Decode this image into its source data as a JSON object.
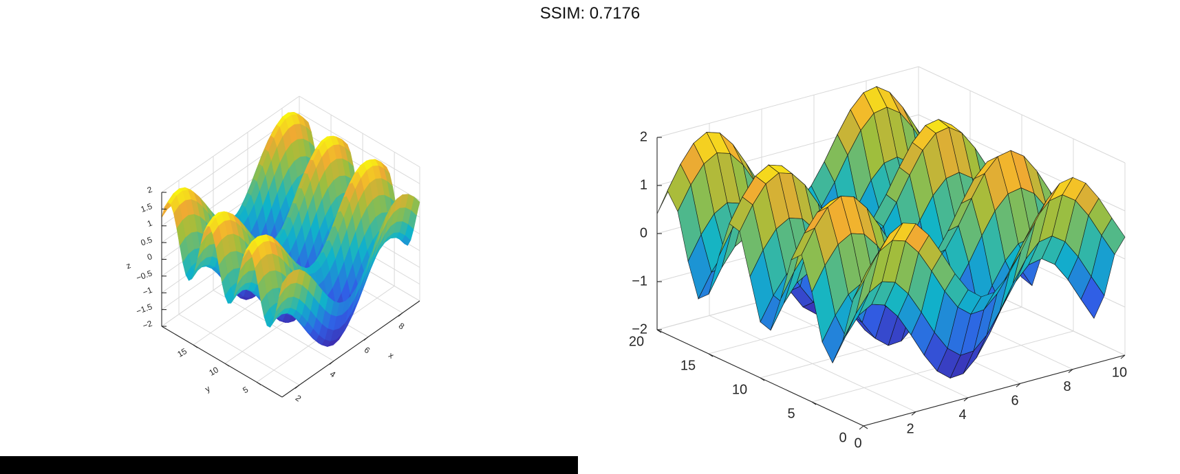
{
  "header": {
    "title": "SSIM: 0.7176"
  },
  "colors": {
    "low": "#3e26a8",
    "mid": "#10b4c9",
    "high": "#f9fb0e",
    "grid": "#d8d8d8",
    "axis": "#262626",
    "edge": "#111111"
  },
  "chart_data": [
    {
      "type": "surface",
      "title": "",
      "xlabel": "x",
      "ylabel": "y",
      "zlabel": "z",
      "xlim": [
        1,
        9
      ],
      "ylim": [
        1,
        20
      ],
      "zlim": [
        -2,
        2
      ],
      "x_ticks": [
        "2",
        "4",
        "6",
        "8"
      ],
      "y_ticks": [
        "5",
        "10",
        "15"
      ],
      "z_ticks": [
        "-2",
        "-1.5",
        "-1",
        "-0.5",
        "0",
        "0.5",
        "1",
        "1.5",
        "2"
      ],
      "shading": "interp",
      "z_function": "sin(x) + cos(y)",
      "grid": true
    },
    {
      "type": "surface",
      "title": "",
      "xlabel": "",
      "ylabel": "",
      "zlabel": "",
      "xlim": [
        0,
        10
      ],
      "ylim": [
        0,
        20
      ],
      "zlim": [
        -2,
        2
      ],
      "x_ticks": [
        "0",
        "2",
        "4",
        "6",
        "8",
        "10"
      ],
      "y_ticks": [
        "0",
        "5",
        "10",
        "15",
        "20"
      ],
      "z_ticks": [
        "-2",
        "-1",
        "0",
        "1",
        "2"
      ],
      "shading": "faceted",
      "z_function": "sin(x) + cos(y)",
      "grid": true
    }
  ]
}
